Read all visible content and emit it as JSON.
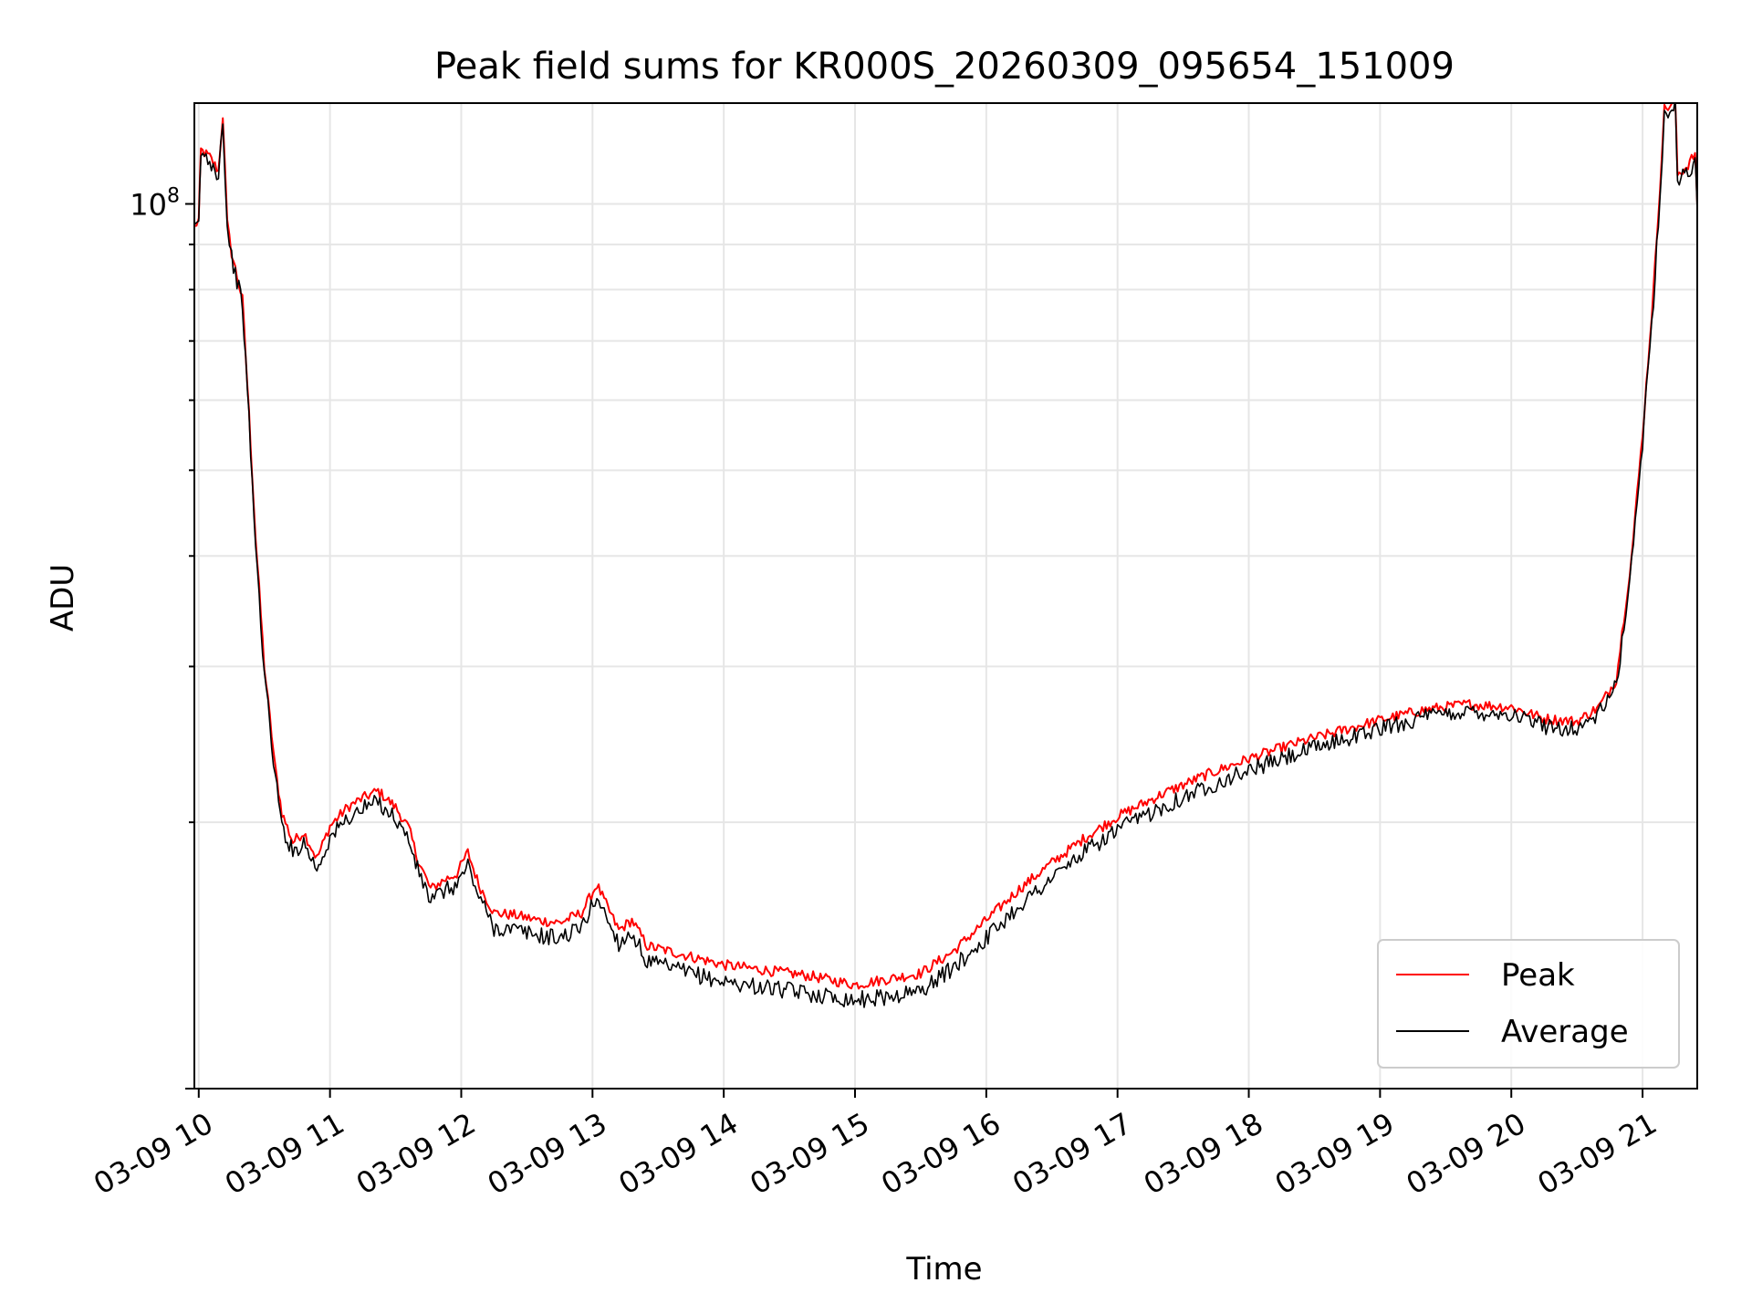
{
  "chart_data": {
    "type": "line",
    "title": "Peak field sums for KR000S_20260309_095654_151009",
    "xlabel": "Time",
    "ylabel": "ADU",
    "x_tick_labels": [
      "03-09 10",
      "03-09 11",
      "03-09 12",
      "03-09 13",
      "03-09 14",
      "03-09 15",
      "03-09 16",
      "03-09 17",
      "03-09 18",
      "03-09 19",
      "03-09 20",
      "03-09 21"
    ],
    "y_tick_labels": [
      {
        "value": 100000000,
        "base": "10",
        "exp": "8"
      }
    ],
    "xlim": [
      "2026-03-09 09:58",
      "2026-03-09 21:25"
    ],
    "ylim": [
      10000000,
      130000000
    ],
    "yscale": "log",
    "grid": true,
    "legend_position": "lower-right",
    "series": [
      {
        "name": "Peak",
        "color": "#ff0000",
        "points": [
          [
            "2026-03-09 09:58",
            94000000
          ],
          [
            "2026-03-09 10:00",
            96000000
          ],
          [
            "2026-03-09 10:01",
            115000000
          ],
          [
            "2026-03-09 10:05",
            113000000
          ],
          [
            "2026-03-09 10:09",
            109000000
          ],
          [
            "2026-03-09 10:11",
            126000000
          ],
          [
            "2026-03-09 10:13",
            95000000
          ],
          [
            "2026-03-09 10:15",
            88000000
          ],
          [
            "2026-03-09 10:20",
            78000000
          ],
          [
            "2026-03-09 10:23",
            58000000
          ],
          [
            "2026-03-09 10:26",
            42000000
          ],
          [
            "2026-03-09 10:30",
            30000000
          ],
          [
            "2026-03-09 10:35",
            23000000
          ],
          [
            "2026-03-09 10:38",
            20500000
          ],
          [
            "2026-03-09 10:43",
            19000000
          ],
          [
            "2026-03-09 10:48",
            19500000
          ],
          [
            "2026-03-09 10:54",
            18200000
          ],
          [
            "2026-03-09 11:00",
            19800000
          ],
          [
            "2026-03-09 11:08",
            20800000
          ],
          [
            "2026-03-09 11:15",
            21300000
          ],
          [
            "2026-03-09 11:22",
            21700000
          ],
          [
            "2026-03-09 11:30",
            20800000
          ],
          [
            "2026-03-09 11:36",
            19700000
          ],
          [
            "2026-03-09 11:40",
            18200000
          ],
          [
            "2026-03-09 11:46",
            16800000
          ],
          [
            "2026-03-09 11:52",
            17200000
          ],
          [
            "2026-03-09 11:58",
            17500000
          ],
          [
            "2026-03-09 12:03",
            18500000
          ],
          [
            "2026-03-09 12:08",
            17000000
          ],
          [
            "2026-03-09 12:15",
            15800000
          ],
          [
            "2026-03-09 12:25",
            15700000
          ],
          [
            "2026-03-09 12:35",
            15500000
          ],
          [
            "2026-03-09 12:45",
            15400000
          ],
          [
            "2026-03-09 12:55",
            15800000
          ],
          [
            "2026-03-09 13:02",
            17000000
          ],
          [
            "2026-03-09 13:07",
            16000000
          ],
          [
            "2026-03-09 13:12",
            15100000
          ],
          [
            "2026-03-09 13:18",
            15500000
          ],
          [
            "2026-03-09 13:25",
            14500000
          ],
          [
            "2026-03-09 13:40",
            14200000
          ],
          [
            "2026-03-09 14:00",
            13800000
          ],
          [
            "2026-03-09 14:20",
            13600000
          ],
          [
            "2026-03-09 14:40",
            13400000
          ],
          [
            "2026-03-09 15:00",
            13100000
          ],
          [
            "2026-03-09 15:15",
            13300000
          ],
          [
            "2026-03-09 15:30",
            13500000
          ],
          [
            "2026-03-09 15:45",
            14300000
          ],
          [
            "2026-03-09 16:00",
            15500000
          ],
          [
            "2026-03-09 16:15",
            16800000
          ],
          [
            "2026-03-09 16:30",
            18000000
          ],
          [
            "2026-03-09 16:45",
            19200000
          ],
          [
            "2026-03-09 17:00",
            20300000
          ],
          [
            "2026-03-09 17:20",
            21500000
          ],
          [
            "2026-03-09 17:40",
            22600000
          ],
          [
            "2026-03-09 18:00",
            23600000
          ],
          [
            "2026-03-09 18:20",
            24500000
          ],
          [
            "2026-03-09 18:40",
            25300000
          ],
          [
            "2026-03-09 19:00",
            26100000
          ],
          [
            "2026-03-09 19:20",
            26800000
          ],
          [
            "2026-03-09 19:40",
            27200000
          ],
          [
            "2026-03-09 20:00",
            27000000
          ],
          [
            "2026-03-09 20:15",
            26200000
          ],
          [
            "2026-03-09 20:30",
            26000000
          ],
          [
            "2026-03-09 20:40",
            27000000
          ],
          [
            "2026-03-09 20:48",
            29000000
          ],
          [
            "2026-03-09 20:55",
            40000000
          ],
          [
            "2026-03-09 21:00",
            55000000
          ],
          [
            "2026-03-09 21:05",
            80000000
          ],
          [
            "2026-03-09 21:08",
            105000000
          ],
          [
            "2026-03-09 21:10",
            128000000
          ],
          [
            "2026-03-09 21:15",
            130000000
          ],
          [
            "2026-03-09 21:16",
            108000000
          ],
          [
            "2026-03-09 21:20",
            110000000
          ],
          [
            "2026-03-09 21:24",
            114000000
          ],
          [
            "2026-03-09 21:25",
            100000000
          ]
        ]
      },
      {
        "name": "Average",
        "color": "#000000",
        "points": [
          [
            "2026-03-09 09:58",
            93000000
          ],
          [
            "2026-03-09 10:00",
            95000000
          ],
          [
            "2026-03-09 10:01",
            114000000
          ],
          [
            "2026-03-09 10:05",
            112000000
          ],
          [
            "2026-03-09 10:09",
            108000000
          ],
          [
            "2026-03-09 10:11",
            125000000
          ],
          [
            "2026-03-09 10:13",
            94000000
          ],
          [
            "2026-03-09 10:15",
            87000000
          ],
          [
            "2026-03-09 10:20",
            77000000
          ],
          [
            "2026-03-09 10:23",
            57000000
          ],
          [
            "2026-03-09 10:26",
            41000000
          ],
          [
            "2026-03-09 10:30",
            29500000
          ],
          [
            "2026-03-09 10:35",
            22500000
          ],
          [
            "2026-03-09 10:38",
            19800000
          ],
          [
            "2026-03-09 10:43",
            18500000
          ],
          [
            "2026-03-09 10:48",
            19000000
          ],
          [
            "2026-03-09 10:54",
            17700000
          ],
          [
            "2026-03-09 11:00",
            19200000
          ],
          [
            "2026-03-09 11:08",
            20200000
          ],
          [
            "2026-03-09 11:15",
            20700000
          ],
          [
            "2026-03-09 11:22",
            21100000
          ],
          [
            "2026-03-09 11:30",
            20200000
          ],
          [
            "2026-03-09 11:36",
            19100000
          ],
          [
            "2026-03-09 11:40",
            17700000
          ],
          [
            "2026-03-09 11:46",
            16300000
          ],
          [
            "2026-03-09 11:52",
            16700000
          ],
          [
            "2026-03-09 11:58",
            17000000
          ],
          [
            "2026-03-09 12:03",
            17900000
          ],
          [
            "2026-03-09 12:08",
            16500000
          ],
          [
            "2026-03-09 12:15",
            15200000
          ],
          [
            "2026-03-09 12:25",
            15100000
          ],
          [
            "2026-03-09 12:35",
            14900000
          ],
          [
            "2026-03-09 12:45",
            14800000
          ],
          [
            "2026-03-09 12:55",
            15200000
          ],
          [
            "2026-03-09 13:02",
            16500000
          ],
          [
            "2026-03-09 13:07",
            15500000
          ],
          [
            "2026-03-09 13:12",
            14600000
          ],
          [
            "2026-03-09 13:18",
            15000000
          ],
          [
            "2026-03-09 13:25",
            13900000
          ],
          [
            "2026-03-09 13:40",
            13600000
          ],
          [
            "2026-03-09 14:00",
            13200000
          ],
          [
            "2026-03-09 14:20",
            13000000
          ],
          [
            "2026-03-09 14:40",
            12800000
          ],
          [
            "2026-03-09 15:00",
            12600000
          ],
          [
            "2026-03-09 15:15",
            12700000
          ],
          [
            "2026-03-09 15:30",
            12900000
          ],
          [
            "2026-03-09 15:45",
            13700000
          ],
          [
            "2026-03-09 16:00",
            14800000
          ],
          [
            "2026-03-09 16:15",
            16100000
          ],
          [
            "2026-03-09 16:30",
            17300000
          ],
          [
            "2026-03-09 16:45",
            18500000
          ],
          [
            "2026-03-09 17:00",
            19600000
          ],
          [
            "2026-03-09 17:20",
            20800000
          ],
          [
            "2026-03-09 17:40",
            21900000
          ],
          [
            "2026-03-09 18:00",
            22900000
          ],
          [
            "2026-03-09 18:20",
            23800000
          ],
          [
            "2026-03-09 18:40",
            24700000
          ],
          [
            "2026-03-09 19:00",
            25500000
          ],
          [
            "2026-03-09 19:20",
            26300000
          ],
          [
            "2026-03-09 19:40",
            26700000
          ],
          [
            "2026-03-09 20:00",
            26500000
          ],
          [
            "2026-03-09 20:15",
            25700000
          ],
          [
            "2026-03-09 20:30",
            25500000
          ],
          [
            "2026-03-09 20:40",
            26500000
          ],
          [
            "2026-03-09 20:48",
            28500000
          ],
          [
            "2026-03-09 20:55",
            39000000
          ],
          [
            "2026-03-09 21:00",
            54000000
          ],
          [
            "2026-03-09 21:05",
            78000000
          ],
          [
            "2026-03-09 21:08",
            103000000
          ],
          [
            "2026-03-09 21:10",
            126000000
          ],
          [
            "2026-03-09 21:15",
            129000000
          ],
          [
            "2026-03-09 21:16",
            106000000
          ],
          [
            "2026-03-09 21:20",
            108000000
          ],
          [
            "2026-03-09 21:24",
            112000000
          ],
          [
            "2026-03-09 21:25",
            98000000
          ]
        ]
      }
    ]
  }
}
